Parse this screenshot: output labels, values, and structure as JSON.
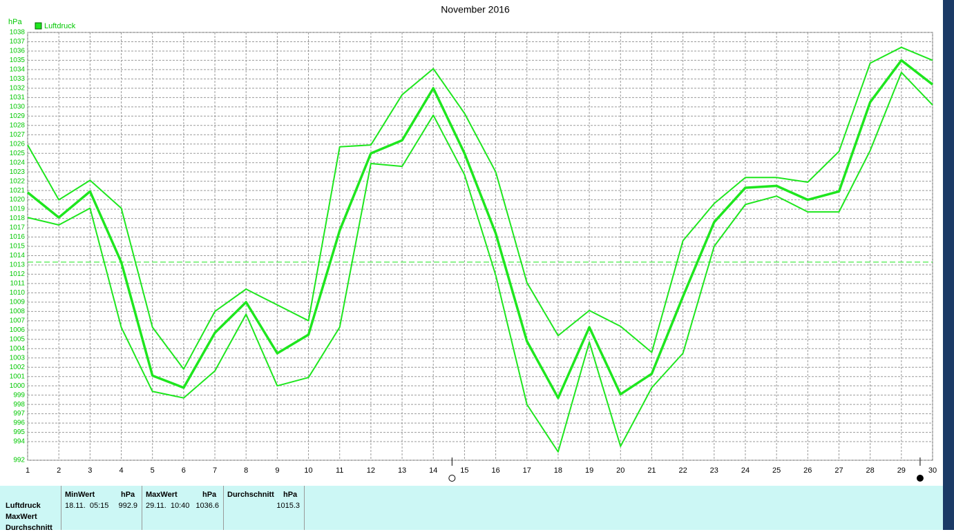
{
  "chart_data": {
    "type": "line",
    "title": "November 2016",
    "y_label": "hPa",
    "x": [
      1,
      2,
      3,
      4,
      5,
      6,
      7,
      8,
      9,
      10,
      11,
      12,
      13,
      14,
      15,
      16,
      17,
      18,
      19,
      20,
      21,
      22,
      23,
      24,
      25,
      26,
      27,
      28,
      29,
      30
    ],
    "xlim": [
      1,
      30
    ],
    "xticks": [
      1,
      2,
      3,
      4,
      5,
      6,
      7,
      8,
      9,
      10,
      11,
      12,
      13,
      14,
      15,
      16,
      17,
      18,
      19,
      20,
      21,
      22,
      23,
      24,
      25,
      26,
      27,
      28,
      29,
      30
    ],
    "ylim": [
      992,
      1038
    ],
    "yticks": [
      992,
      994,
      995,
      996,
      997,
      998,
      999,
      1000,
      1001,
      1002,
      1003,
      1004,
      1005,
      1006,
      1007,
      1008,
      1009,
      1010,
      1011,
      1012,
      1013,
      1014,
      1015,
      1016,
      1017,
      1018,
      1019,
      1020,
      1021,
      1022,
      1023,
      1024,
      1025,
      1026,
      1027,
      1028,
      1029,
      1030,
      1031,
      1032,
      1033,
      1034,
      1035,
      1036,
      1037,
      1038
    ],
    "grid": true,
    "series": [
      {
        "name": "Luftdruck",
        "color": "#1ee61e",
        "values": [
          1020.8,
          1018.1,
          1020.9,
          1013.3,
          1001.1,
          999.8,
          1005.7,
          1009.0,
          1003.5,
          1005.5,
          1016.7,
          1025.0,
          1026.4,
          1032.0,
          1025.0,
          1016.4,
          1004.8,
          998.7,
          1006.3,
          999.1,
          1001.3,
          1009.6,
          1017.6,
          1021.3,
          1021.5,
          1020.0,
          1020.9,
          1030.5,
          1035.0,
          1032.4
        ],
        "max_values": [
          1025.9,
          1020.0,
          1022.1,
          1019.1,
          1006.3,
          1001.8,
          1008.0,
          1010.4,
          1008.7,
          1007.0,
          1025.7,
          1025.9,
          1031.3,
          1034.1,
          1029.3,
          1023.0,
          1011.1,
          1005.4,
          1008.1,
          1006.4,
          1003.6,
          1015.6,
          1019.6,
          1022.4,
          1022.4,
          1021.9,
          1025.2,
          1034.7,
          1036.4,
          1035.0
        ],
        "min_values": [
          1018.1,
          1017.3,
          1019.1,
          1006.3,
          999.4,
          998.7,
          1001.6,
          1007.7,
          1000.0,
          1000.9,
          1006.3,
          1023.9,
          1023.6,
          1029.1,
          1022.7,
          1011.9,
          998.0,
          992.9,
          1004.7,
          993.5,
          999.8,
          1003.5,
          1015.0,
          1019.5,
          1020.4,
          1018.7,
          1018.7,
          1025.3,
          1033.7,
          1030.2
        ]
      }
    ],
    "reference_line": 1013.3,
    "moon_phases": [
      {
        "x": 14.6,
        "phase": "full"
      },
      {
        "x": 29.6,
        "phase": "new"
      }
    ]
  },
  "table": {
    "row_labels": [
      "Luftdruck",
      "MaxWert",
      "Durchschnitt"
    ],
    "columns": [
      {
        "header": "MinWert",
        "unit": "hPa",
        "time": "18.11.  05:15",
        "value": 992.9
      },
      {
        "header": "MaxWert",
        "unit": "hPa",
        "time": "29.11.  10:40",
        "value": 1036.6
      },
      {
        "header": "Durchschnitt",
        "unit": "hPa",
        "value": 1015.3
      }
    ]
  }
}
